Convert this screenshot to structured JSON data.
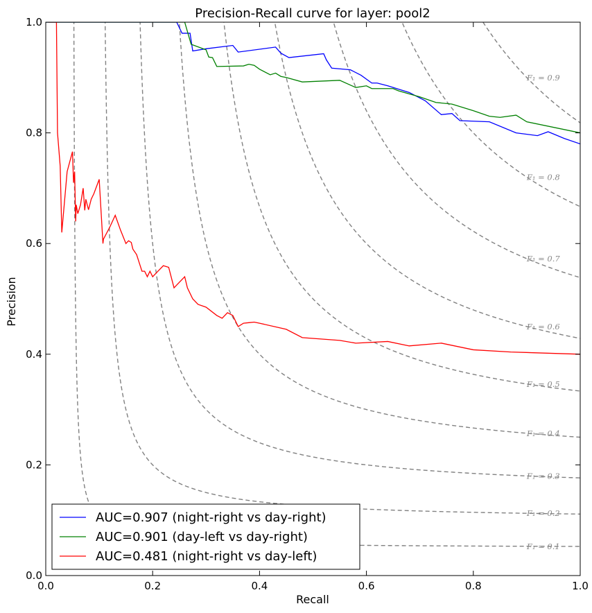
{
  "chart_data": {
    "type": "line",
    "title": "Precision-Recall curve for layer: pool2",
    "xlabel": "Recall",
    "ylabel": "Precision",
    "xlim": [
      0.0,
      1.0
    ],
    "ylim": [
      0.0,
      1.0
    ],
    "xticks": [
      "0.0",
      "0.2",
      "0.4",
      "0.6",
      "0.8",
      "1.0"
    ],
    "yticks": [
      "0.0",
      "0.2",
      "0.4",
      "0.6",
      "0.8",
      "1.0"
    ],
    "grid": false,
    "legend_position": "lower-left",
    "series": [
      {
        "name": "AUC=0.907 (night-right vs day-right)",
        "color": "#0000ff",
        "x": [
          0.0,
          0.245,
          0.255,
          0.27,
          0.275,
          0.3,
          0.35,
          0.36,
          0.43,
          0.44,
          0.455,
          0.52,
          0.525,
          0.535,
          0.57,
          0.59,
          0.61,
          0.62,
          0.64,
          0.68,
          0.71,
          0.74,
          0.76,
          0.775,
          0.83,
          0.88,
          0.92,
          0.94,
          0.97,
          1.0
        ],
        "y": [
          1.0,
          1.0,
          0.98,
          0.98,
          0.948,
          0.952,
          0.958,
          0.946,
          0.955,
          0.944,
          0.936,
          0.943,
          0.932,
          0.917,
          0.914,
          0.904,
          0.89,
          0.89,
          0.885,
          0.873,
          0.858,
          0.833,
          0.835,
          0.822,
          0.82,
          0.8,
          0.795,
          0.802,
          0.79,
          0.78
        ]
      },
      {
        "name": "AUC=0.901 (day-left vs day-right)",
        "color": "#008000",
        "x": [
          0.0,
          0.26,
          0.272,
          0.3,
          0.305,
          0.312,
          0.32,
          0.37,
          0.38,
          0.39,
          0.4,
          0.42,
          0.43,
          0.44,
          0.45,
          0.48,
          0.55,
          0.58,
          0.6,
          0.61,
          0.65,
          0.66,
          0.7,
          0.73,
          0.76,
          0.8,
          0.83,
          0.85,
          0.88,
          0.9,
          1.0
        ],
        "y": [
          1.0,
          1.0,
          0.96,
          0.95,
          0.937,
          0.936,
          0.92,
          0.921,
          0.924,
          0.922,
          0.915,
          0.905,
          0.908,
          0.902,
          0.9,
          0.892,
          0.895,
          0.882,
          0.885,
          0.88,
          0.88,
          0.876,
          0.865,
          0.855,
          0.852,
          0.84,
          0.83,
          0.828,
          0.832,
          0.82,
          0.8
        ]
      },
      {
        "name": "AUC=0.481 (night-right vs day-left)",
        "color": "#ff0000",
        "x": [
          0.005,
          0.02,
          0.022,
          0.027,
          0.03,
          0.04,
          0.05,
          0.052,
          0.054,
          0.056,
          0.057,
          0.06,
          0.065,
          0.07,
          0.073,
          0.075,
          0.08,
          0.085,
          0.09,
          0.1,
          0.107,
          0.108,
          0.12,
          0.13,
          0.14,
          0.15,
          0.155,
          0.16,
          0.163,
          0.17,
          0.18,
          0.185,
          0.19,
          0.195,
          0.2,
          0.205,
          0.21,
          0.22,
          0.23,
          0.24,
          0.245,
          0.25,
          0.26,
          0.265,
          0.275,
          0.285,
          0.3,
          0.32,
          0.33,
          0.34,
          0.35,
          0.36,
          0.37,
          0.38,
          0.39,
          0.4,
          0.45,
          0.48,
          0.55,
          0.58,
          0.64,
          0.68,
          0.74,
          0.8,
          0.87,
          1.0
        ],
        "y": [
          1.0,
          1.0,
          0.8,
          0.74,
          0.62,
          0.73,
          0.766,
          0.71,
          0.73,
          0.64,
          0.67,
          0.654,
          0.67,
          0.7,
          0.66,
          0.68,
          0.661,
          0.68,
          0.69,
          0.716,
          0.6,
          0.608,
          0.63,
          0.651,
          0.624,
          0.6,
          0.605,
          0.602,
          0.59,
          0.58,
          0.55,
          0.55,
          0.54,
          0.55,
          0.54,
          0.545,
          0.55,
          0.56,
          0.557,
          0.52,
          0.525,
          0.53,
          0.54,
          0.52,
          0.5,
          0.49,
          0.485,
          0.47,
          0.465,
          0.475,
          0.47,
          0.45,
          0.456,
          0.457,
          0.458,
          0.456,
          0.445,
          0.43,
          0.425,
          0.42,
          0.423,
          0.415,
          0.42,
          0.408,
          0.404,
          0.4
        ]
      }
    ],
    "iso_f1": {
      "style": "dashed",
      "color": "#808080",
      "values": [
        0.1,
        0.2,
        0.3,
        0.4,
        0.5,
        0.6,
        0.7,
        0.8,
        0.9
      ],
      "labels": [
        "F₁ = 0.1",
        "F₁ = 0.2",
        "F₁ = 0.3",
        "F₁ = 0.4",
        "F₁ = 0.5",
        "F₁ = 0.6",
        "F₁ = 0.7",
        "F₁ = 0.8",
        "F₁ = 0.9"
      ]
    }
  }
}
